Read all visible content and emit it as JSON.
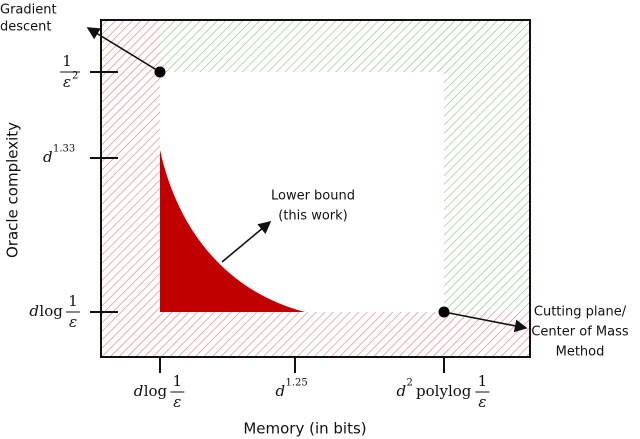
{
  "annotations": {
    "gradient_descent": [
      "Gradient",
      "descent"
    ],
    "lower_bound": [
      "Lower bound",
      "(this work)"
    ],
    "cutting_plane": [
      "Cutting plane/",
      "Center of Mass",
      "Method"
    ]
  },
  "axes": {
    "x_label": "Memory (in bits)",
    "y_label": "Oracle complexity",
    "x_ticks": [
      {
        "base": "d",
        "word": "log",
        "num": "1",
        "den": "ε"
      },
      {
        "base": "d",
        "exp": "1.25"
      },
      {
        "base": "d",
        "exp": "2",
        "word": "polylog",
        "num": "1",
        "den": "ε"
      }
    ],
    "y_ticks": [
      {
        "num": "1",
        "den": "ε",
        "den_exp": "2"
      },
      {
        "base": "d",
        "exp": "1.33"
      },
      {
        "base": "d",
        "word": "log",
        "num": "1",
        "den": "ε"
      }
    ]
  }
}
